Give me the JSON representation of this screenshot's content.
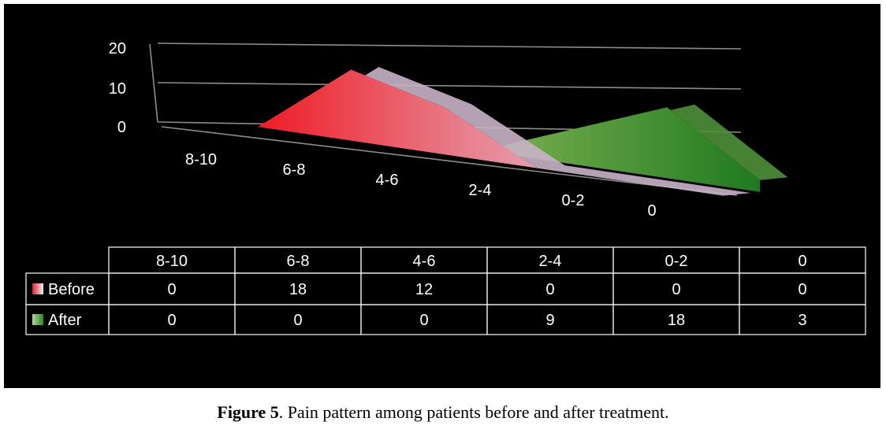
{
  "chart_data": {
    "type": "area",
    "categories": [
      "8-10",
      "6-8",
      "4-6",
      "2-4",
      "0-2",
      "0"
    ],
    "series": [
      {
        "name": "Before",
        "values": [
          0,
          18,
          12,
          0,
          0,
          0
        ],
        "color": "#e8202a"
      },
      {
        "name": "After",
        "values": [
          0,
          0,
          0,
          9,
          18,
          3
        ],
        "color": "#3f8f2a"
      }
    ],
    "y_ticks": [
      "0",
      "10",
      "20"
    ],
    "ylim": [
      0,
      20
    ],
    "data_table": {
      "headers": [
        "8-10",
        "6-8",
        "4-6",
        "2-4",
        "0-2",
        "0"
      ],
      "rows": [
        {
          "label": "Before",
          "values": [
            "0",
            "18",
            "12",
            "0",
            "0",
            "0"
          ]
        },
        {
          "label": "After",
          "values": [
            "0",
            "0",
            "0",
            "9",
            "18",
            "3"
          ]
        }
      ]
    },
    "background": "#000000",
    "grid": true
  },
  "caption": {
    "label": "Figure 5",
    "text": ". Pain pattern among patients before and after treatment."
  }
}
